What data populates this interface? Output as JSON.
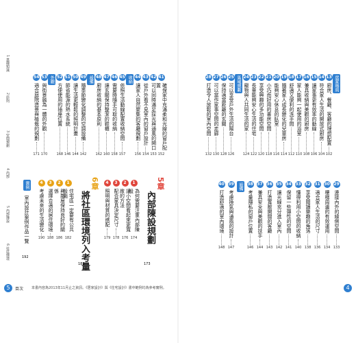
{
  "left_page": {
    "page_number": "5",
    "footer_label": "目次",
    "footer_note": "本書內容為2013年11月止之資訊。《居家設計》與《住宅設計》書中範例均為參考實例。",
    "index": [
      "1 基礎知識",
      "2 原則",
      "3 空間規劃",
      "4 內部",
      "5 內部陳設",
      "6 社區環境"
    ],
    "top": [
      {
        "num": "41",
        "text": "確保家中充滿柔和光線的窗戶配置",
        "page": "152"
      },
      {
        "num": "42",
        "text": "可以同時滿足採光與通風的開口",
        "page": "153"
      },
      {
        "num": "43",
        "text": "從戶外看不見室內的窗戶設計",
        "page": "154"
      },
      {
        "num": "44",
        "text": "讓家人自然聚集的客廳規劃",
        "page": "156"
      },
      {
        "tag": "收納"
      },
      {
        "num": "45",
        "text": "依照生活動線配置收納空間",
        "page": "157"
      },
      {
        "num": "46",
        "text": "需要時隨手可取的收納",
        "page": "158"
      },
      {
        "num": "47",
        "text": "讓玄關保持整潔的鞋櫃",
        "page": "160"
      },
      {
        "num": "48",
        "text": "廚房收納的基本原則",
        "page": "162"
      },
      {
        "tag": "設備"
      },
      {
        "num": "49",
        "text": "隨季節變化調整的空調設備",
        "page": "142"
      },
      {
        "num": "50",
        "text": "讓生活更輕鬆的照明計畫",
        "page": "144"
      },
      {
        "num": "51",
        "text": "節省能源的熱水系統",
        "page": "146"
      },
      {
        "num": "52",
        "text": "方便使用的插座位置",
        "page": "168"
      },
      {
        "tag": "外觀"
      },
      {
        "num": "53",
        "text": "與街景融為一體的外觀",
        "page": "170"
      },
      {
        "num": "54",
        "text": "適合庭院造景與植栽的規劃",
        "page": "171"
      }
    ],
    "chapter5": {
      "label": "5章",
      "title": "內部陳設規劃",
      "page": "173",
      "entries": [
        {
          "num": "1",
          "text": "為何需要注重內部陳設",
          "page": "174"
        },
        {
          "num": "2",
          "text": "讓小空間看起來更寬敞的方法",
          "page": "176"
        },
        {
          "num": "3",
          "text": "配合家具決定尺寸",
          "page": "178"
        },
        {
          "num": "4",
          "text": "照明與材質的搭配",
          "page": "179"
        }
      ]
    },
    "chapter6": {
      "label": "6章",
      "title": "將社區環境列入考量",
      "page": "181",
      "entries": [
        {
          "num": "1",
          "text": "住宅區一定要有公共設施",
          "page": "182"
        },
        {
          "num": "2",
          "text": "與鄰居保持良好的關係",
          "page": "186"
        },
        {
          "num": "3",
          "text": "選擇合適的居住環境",
          "page": "188"
        },
        {
          "num": "4",
          "text": "考慮未來的生活變化",
          "page": "190"
        }
      ]
    },
    "appendix": {
      "tag": "實例",
      "text": "室內設計案例作品一覽",
      "page": "192"
    }
  },
  "right_page": {
    "page_number": "4",
    "top": [
      {
        "tag": "居家格局"
      },
      {
        "num": "13",
        "text": "廚房、餐廳、客廳的理想配置",
        "page": "102"
      },
      {
        "num": "14",
        "text": "符合家人生活的開放式廚房",
        "page": "104"
      },
      {
        "num": "15",
        "text": "讓家事更有效率的動線",
        "page": "106"
      },
      {
        "num": "16",
        "text": "兼具收納與美觀的廚房",
        "page": "108"
      },
      {
        "num": "17",
        "text": "家人能夠一起使用的浴室",
        "page": "110"
      },
      {
        "num": "18",
        "text": "舒適又便利的洗手間",
        "page": "112"
      },
      {
        "num": "19",
        "text": "隨著家人成長變化的兒童房",
        "page": "114"
      },
      {
        "num": "20",
        "text": "能夠安心休息的臥室",
        "page": "116"
      },
      {
        "num": "21",
        "text": "小巧而好用的書房空間",
        "page": "118"
      },
      {
        "num": "22",
        "text": "享受興趣的多功能空間",
        "page": "120"
      },
      {
        "num": "23",
        "text": "長輩能夠安心生活的住宅",
        "page": "122"
      },
      {
        "num": "24",
        "text": "寵物與人共同生活的家",
        "page": "124"
      },
      {
        "tag": "區域規劃"
      },
      {
        "num": "25",
        "text": "可以享受戶外生活的陽台",
        "page": "126"
      },
      {
        "num": "26",
        "text": "保持適當距離的玄關",
        "page": "128"
      },
      {
        "num": "27",
        "text": "可以當作家事空間的走廊",
        "page": "130"
      },
      {
        "num": "28",
        "text": "打造令人放鬆的室內空間",
        "page": "132"
      }
    ],
    "bottom": [
      {
        "num": "29",
        "text": "連接內外的緣側空間",
        "page": "133"
      },
      {
        "num": "30",
        "text": "樓梯周邊的有效運用",
        "page": "134"
      },
      {
        "num": "31",
        "text": "適合家人生活的尺寸",
        "page": "136"
      },
      {
        "num": "32",
        "text": "享受閱讀樂趣的角落",
        "page": "138"
      },
      {
        "num": "33",
        "text": "懂得利用小空間的收納",
        "page": "140"
      },
      {
        "num": "34",
        "text": "保留一些彈性的空間",
        "page": "141"
      },
      {
        "num": "35",
        "text": "讓光線充分進入室內",
        "page": "142"
      },
      {
        "num": "36",
        "text": "打造寬敞開闊的客廳",
        "page": "143"
      },
      {
        "num": "37",
        "text": "兼具安全與美觀的扶手",
        "page": "144"
      },
      {
        "num": "38",
        "text": "考量隱私的窗戶位置",
        "page": "146"
      },
      {
        "tag": "設備"
      },
      {
        "num": "39",
        "text": "考慮換氣與通風的設計",
        "page": "147"
      },
      {
        "num": "40",
        "text": "打造舒適的室內環境",
        "page": "148"
      }
    ]
  }
}
